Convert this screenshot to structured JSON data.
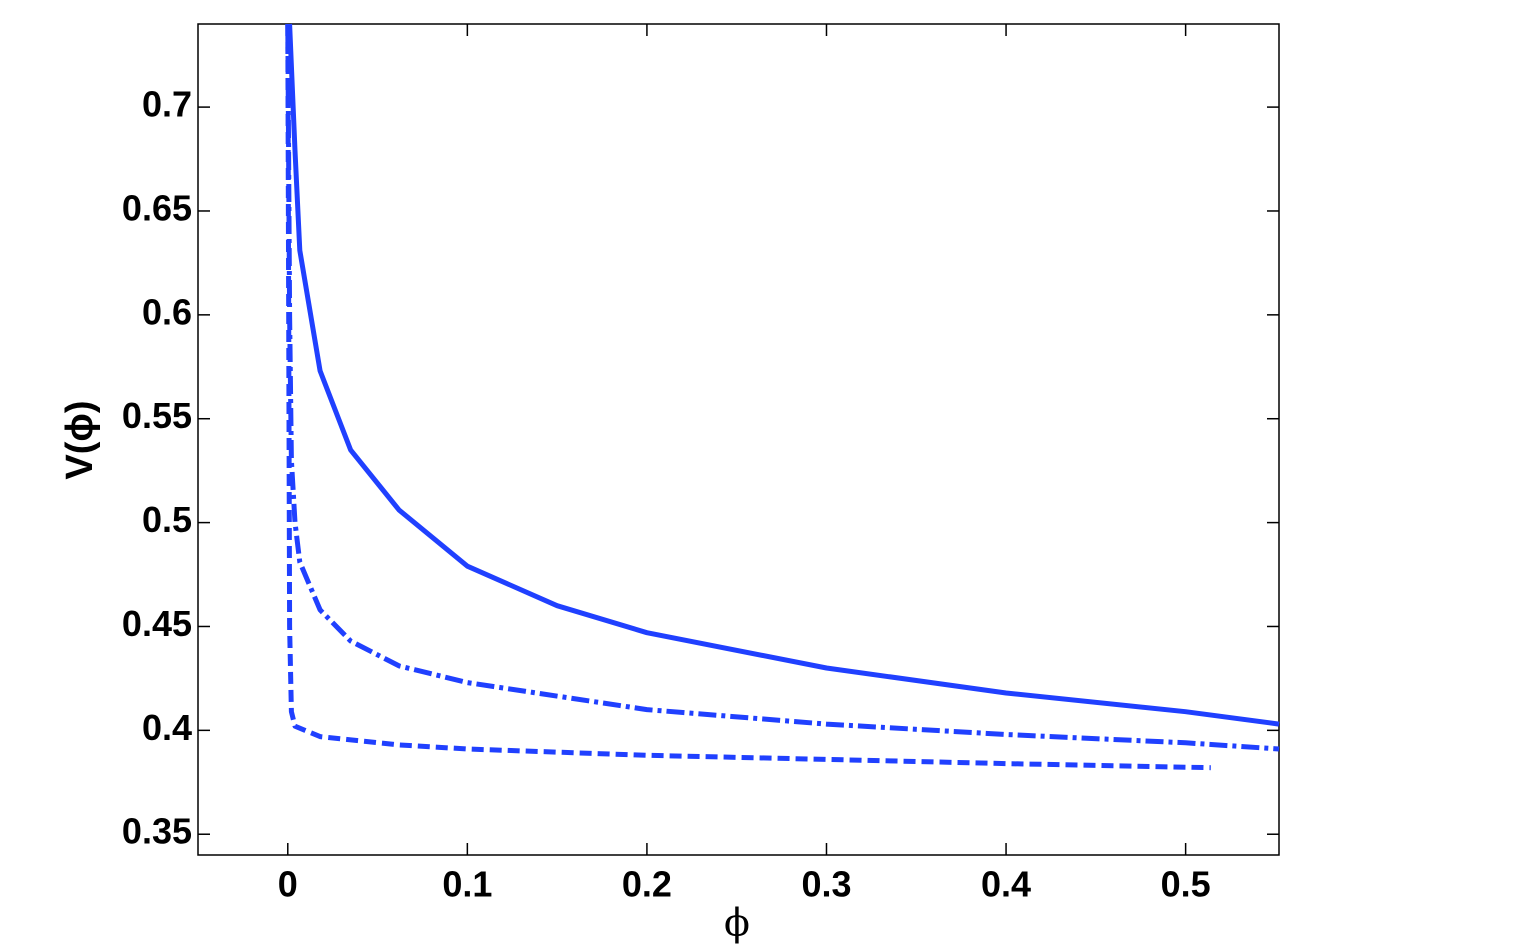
{
  "chart_data": {
    "type": "line",
    "xlabel": "ϕ",
    "ylabel": "V(ϕ)",
    "xlim": [
      -0.05,
      0.552
    ],
    "ylim": [
      0.34,
      0.74
    ],
    "xticks": [
      0,
      0.1,
      0.2,
      0.3,
      0.4,
      0.5
    ],
    "yticks": [
      0.35,
      0.4,
      0.45,
      0.5,
      0.55,
      0.6,
      0.65,
      0.7
    ],
    "grid": false,
    "series": [
      {
        "color": "#2040ff",
        "line_style": "solid",
        "x": [
          0.001,
          0.004,
          0.0067,
          0.018,
          0.035,
          0.062,
          0.1,
          0.15,
          0.2,
          0.3,
          0.4,
          0.5,
          0.552
        ],
        "values": [
          0.74,
          0.679,
          0.631,
          0.573,
          0.535,
          0.506,
          0.479,
          0.46,
          0.447,
          0.43,
          0.418,
          0.409,
          0.403
        ]
      },
      {
        "color": "#2040ff",
        "line_style": "dashdot",
        "x": [
          0.0,
          0.001,
          0.002,
          0.004,
          0.0067,
          0.018,
          0.035,
          0.062,
          0.1,
          0.2,
          0.3,
          0.4,
          0.5,
          0.552
        ],
        "values": [
          0.74,
          0.6,
          0.53,
          0.5,
          0.481,
          0.458,
          0.443,
          0.431,
          0.423,
          0.41,
          0.403,
          0.398,
          0.394,
          0.391
        ]
      },
      {
        "color": "#2040ff",
        "line_style": "dashed",
        "x": [
          0.0,
          0.0005,
          0.001,
          0.002,
          0.004,
          0.018,
          0.062,
          0.1,
          0.2,
          0.3,
          0.4,
          0.514
        ],
        "values": [
          0.74,
          0.6,
          0.45,
          0.409,
          0.402,
          0.397,
          0.393,
          0.391,
          0.388,
          0.386,
          0.384,
          0.382
        ]
      }
    ]
  }
}
